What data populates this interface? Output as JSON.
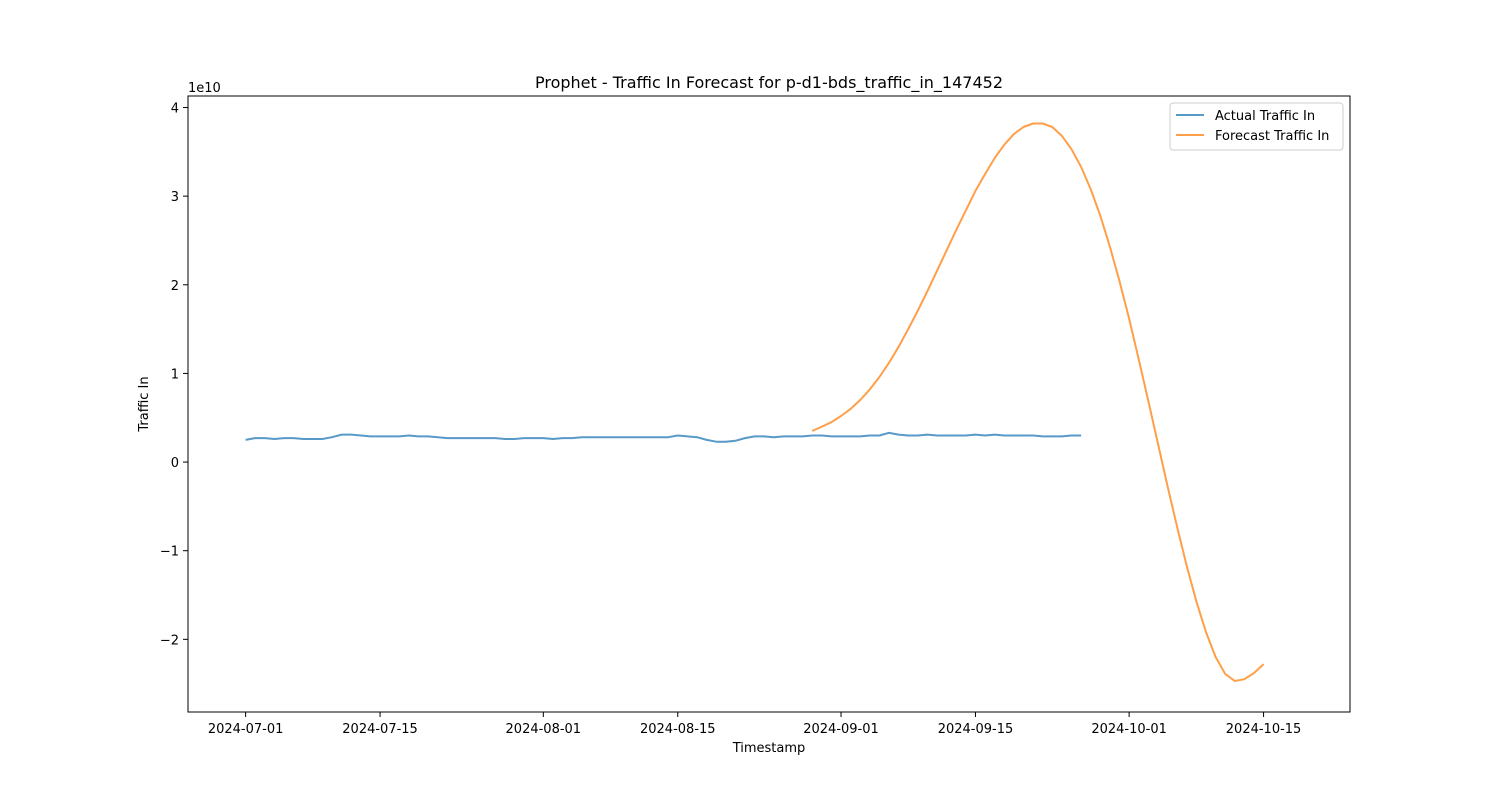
{
  "chart_data": {
    "type": "line",
    "title": "Prophet - Traffic In Forecast for p-d1-bds_traffic_in_147452",
    "xlabel": "Timestamp",
    "ylabel": "Traffic In",
    "y_offset_label": "1e10",
    "y_unit_multiplier": 10000000000,
    "xlim": [
      "2024-06-25",
      "2024-10-24"
    ],
    "ylim": [
      -2.82,
      4.13
    ],
    "x_ticks": [
      {
        "date": "2024-07-01",
        "label": "2024-07-01"
      },
      {
        "date": "2024-07-15",
        "label": "2024-07-15"
      },
      {
        "date": "2024-08-01",
        "label": "2024-08-01"
      },
      {
        "date": "2024-08-15",
        "label": "2024-08-15"
      },
      {
        "date": "2024-09-01",
        "label": "2024-09-01"
      },
      {
        "date": "2024-09-15",
        "label": "2024-09-15"
      },
      {
        "date": "2024-10-01",
        "label": "2024-10-01"
      },
      {
        "date": "2024-10-15",
        "label": "2024-10-15"
      }
    ],
    "y_ticks": [
      {
        "value": 4,
        "label": "4"
      },
      {
        "value": 3,
        "label": "3"
      },
      {
        "value": 2,
        "label": "2"
      },
      {
        "value": 1,
        "label": "1"
      },
      {
        "value": 0,
        "label": "0"
      },
      {
        "value": -1,
        "label": "−1"
      },
      {
        "value": -2,
        "label": "−2"
      }
    ],
    "grid": false,
    "legend_position": "top-right",
    "series": [
      {
        "name": "Actual Traffic In",
        "color": "#1f77b4",
        "start_date": "2024-07-01",
        "step_days": 1,
        "values": [
          0.25,
          0.27,
          0.27,
          0.26,
          0.27,
          0.27,
          0.26,
          0.26,
          0.26,
          0.28,
          0.31,
          0.31,
          0.3,
          0.29,
          0.29,
          0.29,
          0.29,
          0.3,
          0.29,
          0.29,
          0.28,
          0.27,
          0.27,
          0.27,
          0.27,
          0.27,
          0.27,
          0.26,
          0.26,
          0.27,
          0.27,
          0.27,
          0.26,
          0.27,
          0.27,
          0.28,
          0.28,
          0.28,
          0.28,
          0.28,
          0.28,
          0.28,
          0.28,
          0.28,
          0.28,
          0.3,
          0.29,
          0.28,
          0.25,
          0.23,
          0.23,
          0.24,
          0.27,
          0.29,
          0.29,
          0.28,
          0.29,
          0.29,
          0.29,
          0.3,
          0.3,
          0.29,
          0.29,
          0.29,
          0.29,
          0.3,
          0.3,
          0.33,
          0.31,
          0.3,
          0.3,
          0.31,
          0.3,
          0.3,
          0.3,
          0.3,
          0.31,
          0.3,
          0.31,
          0.3,
          0.3,
          0.3,
          0.3,
          0.29,
          0.29,
          0.29,
          0.3,
          0.3
        ]
      },
      {
        "name": "Forecast Traffic In",
        "color": "#ff7f0e",
        "start_date": "2024-08-29",
        "step_days": 1,
        "values": [
          0.35,
          0.4,
          0.45,
          0.52,
          0.6,
          0.7,
          0.82,
          0.96,
          1.12,
          1.3,
          1.5,
          1.71,
          1.93,
          2.16,
          2.39,
          2.62,
          2.84,
          3.06,
          3.25,
          3.43,
          3.58,
          3.7,
          3.78,
          3.82,
          3.82,
          3.78,
          3.68,
          3.53,
          3.33,
          3.08,
          2.78,
          2.43,
          2.04,
          1.62,
          1.16,
          0.69,
          0.21,
          -0.27,
          -0.73,
          -1.17,
          -1.57,
          -1.92,
          -2.2,
          -2.39,
          -2.47,
          -2.45,
          -2.38,
          -2.28
        ]
      }
    ]
  }
}
